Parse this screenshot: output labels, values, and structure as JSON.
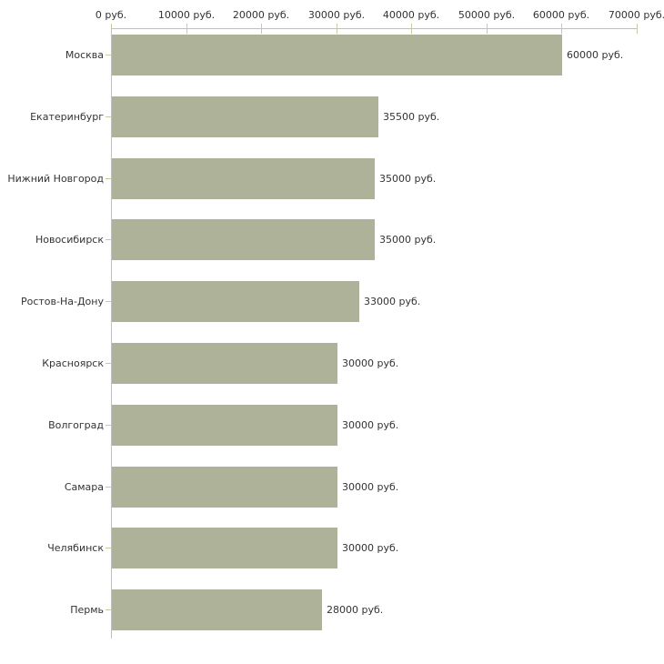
{
  "chart_data": {
    "type": "bar",
    "orientation": "horizontal",
    "title": "",
    "categories": [
      "Москва",
      "Екатеринбург",
      "Нижний Новгород",
      "Новосибирск",
      "Ростов-На-Дону",
      "Красноярск",
      "Волгоград",
      "Самара",
      "Челябинск",
      "Пермь"
    ],
    "values": [
      60000,
      35500,
      35000,
      35000,
      33000,
      30000,
      30000,
      30000,
      30000,
      28000
    ],
    "value_labels": [
      "60000 руб.",
      "35500 руб.",
      "35000 руб.",
      "35000 руб.",
      "33000 руб.",
      "30000 руб.",
      "30000 руб.",
      "30000 руб.",
      "30000 руб.",
      "28000 руб."
    ],
    "x_ticks": [
      0,
      10000,
      20000,
      30000,
      40000,
      50000,
      60000,
      70000
    ],
    "x_tick_labels": [
      "0 руб.",
      "10000 руб.",
      "20000 руб.",
      "30000 руб.",
      "40000 руб.",
      "50000 руб.",
      "60000 руб.",
      "70000 руб."
    ],
    "xlim": [
      0,
      70000
    ],
    "unit": "руб.",
    "grid": false,
    "legend": false,
    "axis_position": "top",
    "colors": {
      "bar": "#adb299",
      "axis_line": "#c0c0c0",
      "tick": "#c6ca9f",
      "text": "#333333",
      "background": "#ffffff"
    }
  }
}
